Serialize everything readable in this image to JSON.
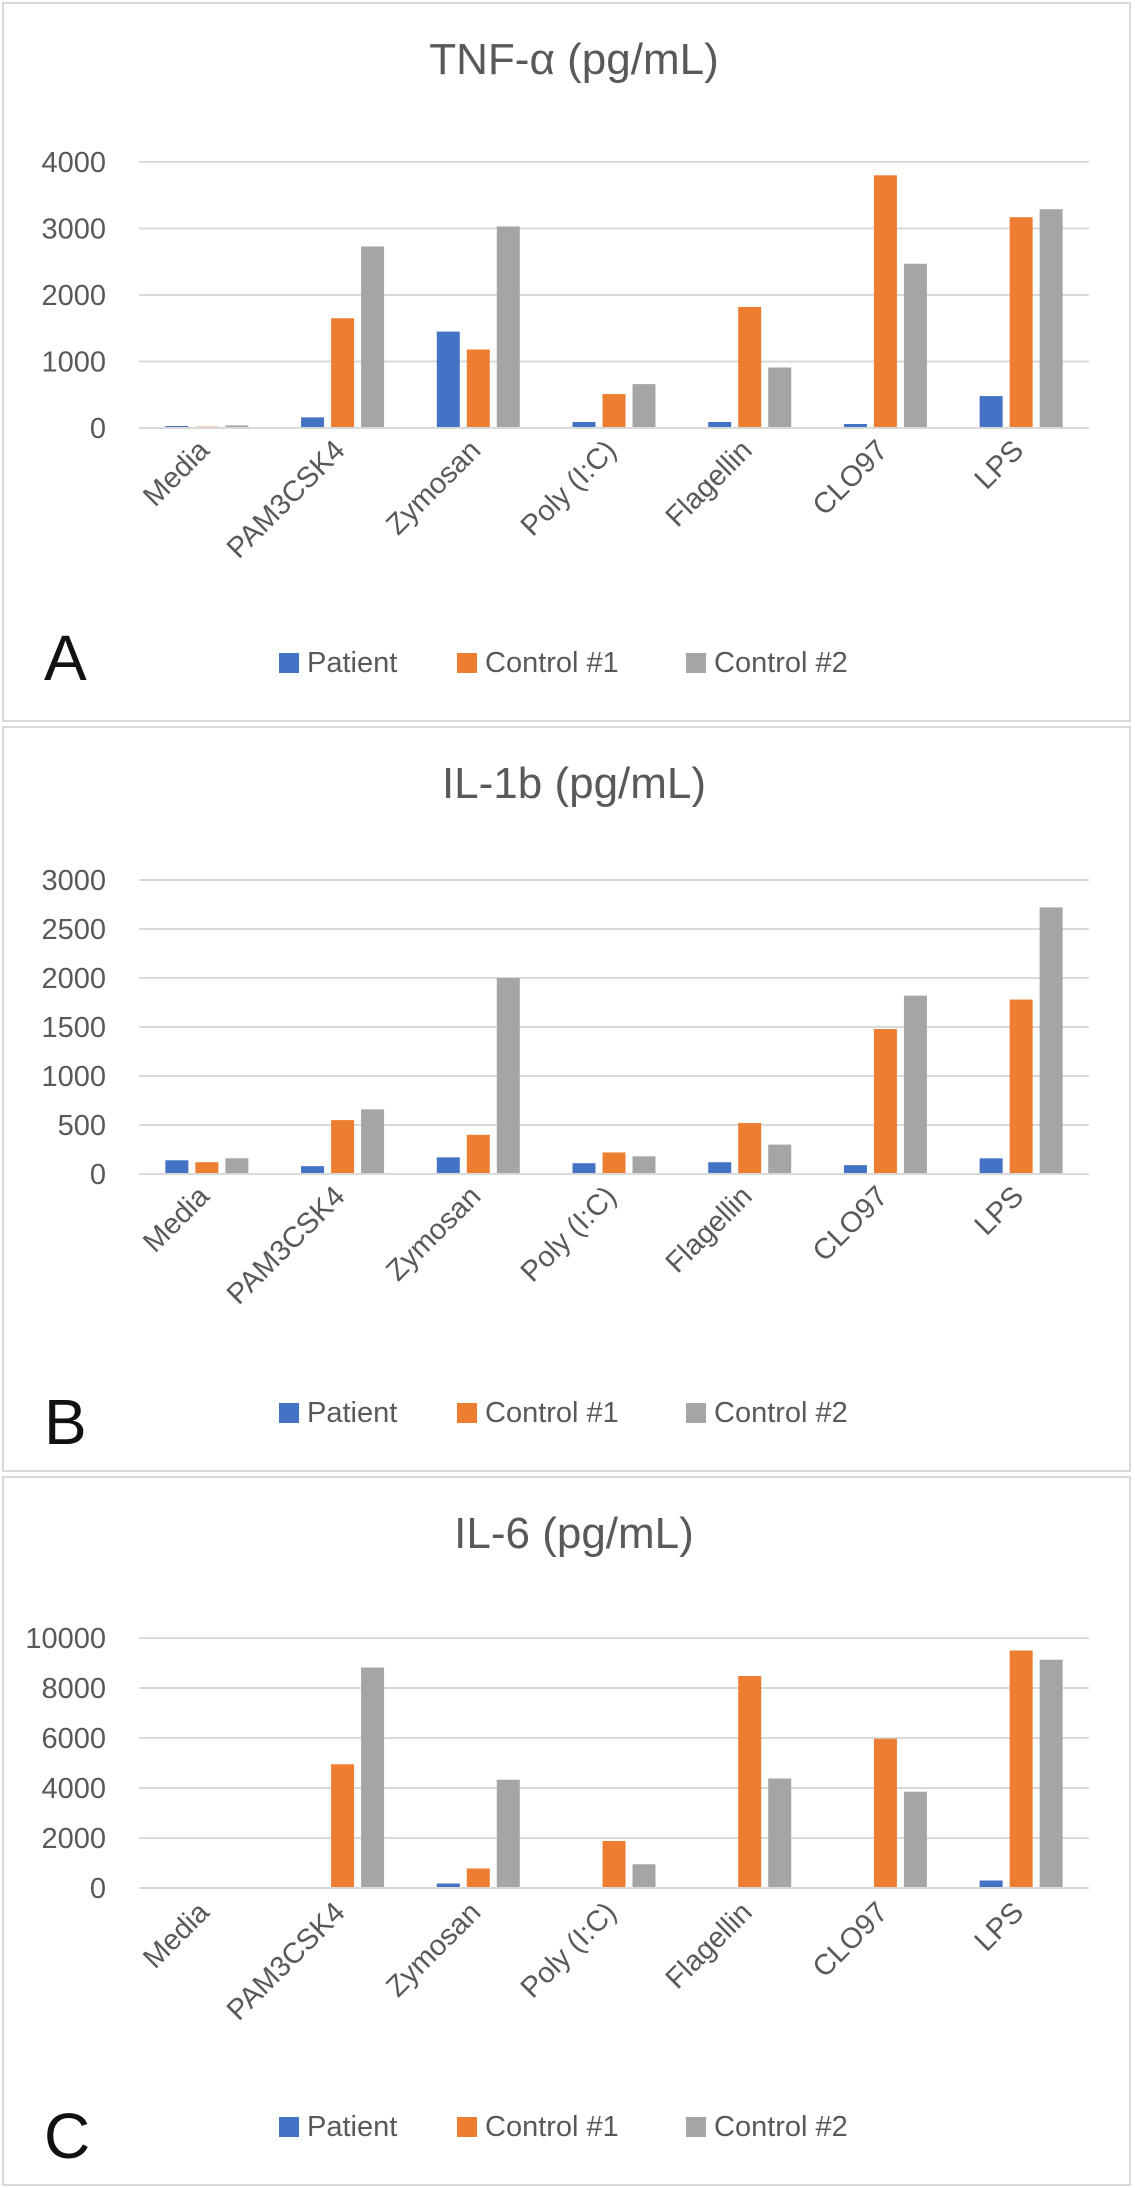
{
  "legend": {
    "series": [
      "Patient",
      "Control #1",
      "Control #2"
    ]
  },
  "colors": {
    "patient": "#4472c4",
    "control1": "#ed7d31",
    "control2": "#a5a5a5",
    "grid": "#d9d9d9",
    "text": "#595959"
  },
  "chart_data": [
    {
      "type": "bar",
      "panel_label": "A",
      "title": "TNF-α (pg/mL)",
      "xlabel": "",
      "ylabel": "",
      "ylim": [
        0,
        4000
      ],
      "yticks": [
        "0",
        "1000",
        "2000",
        "3000",
        "4000"
      ],
      "categories": [
        "Media",
        "PAM3CSK4",
        "Zymosan",
        "Poly (I:C)",
        "Flagellin",
        "CLO97",
        "LPS"
      ],
      "series": [
        {
          "name": "Patient",
          "values": [
            30,
            160,
            1450,
            90,
            90,
            60,
            480
          ]
        },
        {
          "name": "Control #1",
          "values": [
            20,
            1650,
            1180,
            510,
            1820,
            3800,
            3170
          ]
        },
        {
          "name": "Control #2",
          "values": [
            40,
            2730,
            3030,
            660,
            910,
            2470,
            3290
          ]
        }
      ]
    },
    {
      "type": "bar",
      "panel_label": "B",
      "title": "IL-1b (pg/mL)",
      "xlabel": "",
      "ylabel": "",
      "ylim": [
        0,
        3000
      ],
      "yticks": [
        "0",
        "500",
        "1000",
        "1500",
        "2000",
        "2500",
        "3000"
      ],
      "categories": [
        "Media",
        "PAM3CSK4",
        "Zymosan",
        "Poly (I:C)",
        "Flagellin",
        "CLO97",
        "LPS"
      ],
      "series": [
        {
          "name": "Patient",
          "values": [
            140,
            80,
            170,
            110,
            120,
            90,
            160
          ]
        },
        {
          "name": "Control #1",
          "values": [
            120,
            550,
            400,
            220,
            520,
            1480,
            1780
          ]
        },
        {
          "name": "Control #2",
          "values": [
            160,
            660,
            2000,
            180,
            300,
            1820,
            2720
          ]
        }
      ]
    },
    {
      "type": "bar",
      "panel_label": "C",
      "title": "IL-6 (pg/mL)",
      "xlabel": "",
      "ylabel": "",
      "ylim": [
        0,
        10000
      ],
      "yticks": [
        "0",
        "2000",
        "4000",
        "6000",
        "8000",
        "10000"
      ],
      "categories": [
        "Media",
        "PAM3CSK4",
        "Zymosan",
        "Poly (I:C)",
        "Flagellin",
        "CLO97",
        "LPS"
      ],
      "series": [
        {
          "name": "Patient",
          "values": [
            0,
            0,
            180,
            0,
            0,
            0,
            300
          ]
        },
        {
          "name": "Control #1",
          "values": [
            0,
            4950,
            780,
            1880,
            8480,
            5970,
            9500
          ]
        },
        {
          "name": "Control #2",
          "values": [
            0,
            8820,
            4330,
            950,
            4380,
            3850,
            9130
          ]
        }
      ]
    }
  ]
}
